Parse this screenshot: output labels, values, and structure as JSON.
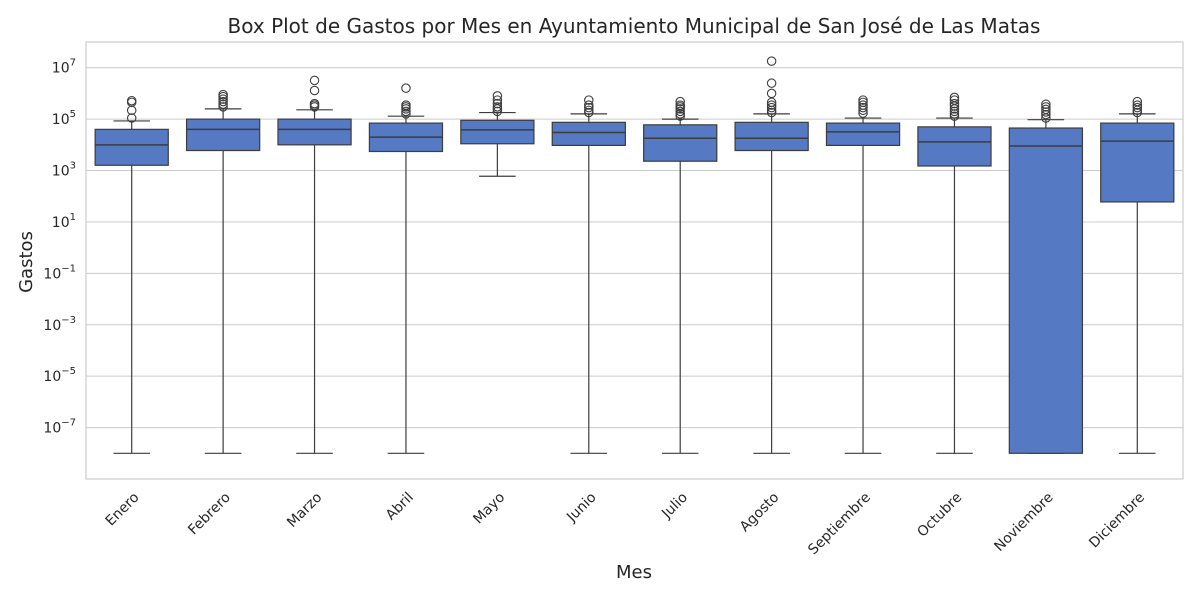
{
  "chart_data": {
    "type": "box",
    "title": "Box Plot de Gastos por Mes en Ayuntamiento Municipal de San José de Las Matas",
    "xlabel": "Mes",
    "ylabel": "Gastos",
    "y_scale": "log",
    "ylim": [
      1e-09,
      100000000.0
    ],
    "y_ticks": [
      1e-07,
      1e-05,
      0.001,
      0.1,
      10.0,
      1000.0,
      100000.0,
      10000000.0
    ],
    "grid": true,
    "box_color": "#5579c2",
    "categories": [
      "Enero",
      "Febrero",
      "Marzo",
      "Abril",
      "Mayo",
      "Junio",
      "Julio",
      "Agosto",
      "Septiembre",
      "Octubre",
      "Noviembre",
      "Diciembre"
    ],
    "boxes": [
      {
        "category": "Enero",
        "whisker_low": 1e-08,
        "q1": 1600,
        "median": 10000,
        "q3": 40000,
        "whisker_high": 85000,
        "outliers": [
          110000,
          220000,
          450000,
          520000
        ]
      },
      {
        "category": "Febrero",
        "whisker_low": 1e-08,
        "q1": 6000,
        "median": 40000,
        "q3": 100000,
        "whisker_high": 250000,
        "outliers": [
          300000,
          380000,
          480000,
          600000,
          750000,
          900000
        ]
      },
      {
        "category": "Marzo",
        "whisker_low": 1e-08,
        "q1": 10000,
        "median": 40000,
        "q3": 100000,
        "whisker_high": 230000,
        "outliers": [
          300000,
          350000,
          400000,
          1300000,
          3200000
        ]
      },
      {
        "category": "Abril",
        "whisker_low": 1e-08,
        "q1": 5500,
        "median": 20000,
        "q3": 70000,
        "whisker_high": 130000,
        "outliers": [
          160000,
          200000,
          250000,
          300000,
          350000,
          1600000
        ]
      },
      {
        "category": "Mayo",
        "whisker_low": 600,
        "q1": 11000,
        "median": 38000,
        "q3": 90000,
        "whisker_high": 180000,
        "outliers": [
          200000,
          250000,
          300000,
          400000,
          550000,
          800000
        ]
      },
      {
        "category": "Junio",
        "whisker_low": 1e-08,
        "q1": 9500,
        "median": 30000,
        "q3": 75000,
        "whisker_high": 160000,
        "outliers": [
          180000,
          220000,
          280000,
          350000,
          550000
        ]
      },
      {
        "category": "Julio",
        "whisker_low": 1e-08,
        "q1": 2300,
        "median": 18000,
        "q3": 60000,
        "whisker_high": 100000,
        "outliers": [
          130000,
          160000,
          200000,
          250000,
          300000,
          350000,
          480000
        ]
      },
      {
        "category": "Agosto",
        "whisker_low": 1e-08,
        "q1": 6000,
        "median": 18000,
        "q3": 75000,
        "whisker_high": 160000,
        "outliers": [
          180000,
          220000,
          280000,
          350000,
          450000,
          1000000,
          2500000,
          18000000
        ]
      },
      {
        "category": "Septiembre",
        "whisker_low": 1e-08,
        "q1": 9500,
        "median": 32000,
        "q3": 70000,
        "whisker_high": 110000,
        "outliers": [
          170000,
          220000,
          280000,
          350000,
          450000,
          550000
        ]
      },
      {
        "category": "Octubre",
        "whisker_low": 1e-08,
        "q1": 1500,
        "median": 13000,
        "q3": 50000,
        "whisker_high": 110000,
        "outliers": [
          130000,
          160000,
          200000,
          250000,
          320000,
          400000,
          550000,
          700000
        ]
      },
      {
        "category": "Noviembre",
        "whisker_low": 1e-08,
        "q1": 1e-08,
        "median": 9000,
        "q3": 45000,
        "whisker_high": 95000,
        "outliers": [
          110000,
          150000,
          190000,
          240000,
          300000,
          380000
        ]
      },
      {
        "category": "Diciembre",
        "whisker_low": 1e-08,
        "q1": 60,
        "median": 14000,
        "q3": 70000,
        "whisker_high": 160000,
        "outliers": [
          180000,
          220000,
          280000,
          350000,
          480000
        ]
      }
    ]
  }
}
